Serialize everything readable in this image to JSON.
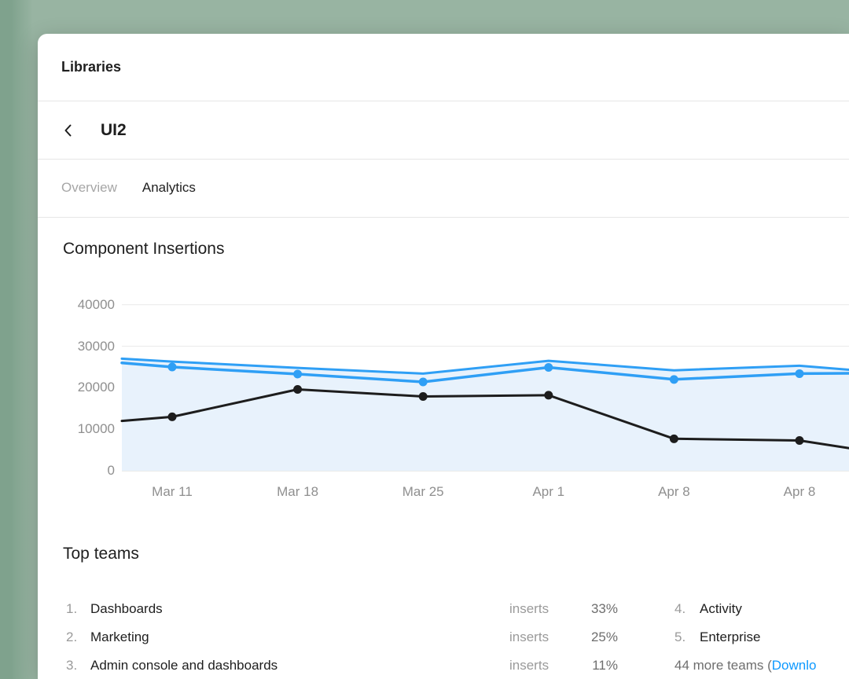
{
  "header": {
    "title": "Libraries"
  },
  "nav": {
    "title": "UI2"
  },
  "tabs": [
    {
      "label": "Overview",
      "active": false
    },
    {
      "label": "Analytics",
      "active": true
    }
  ],
  "chart_data": {
    "type": "line",
    "title": "Component Insertions",
    "categories": [
      "Mar 11",
      "Mar 18",
      "Mar 25",
      "Apr 1",
      "Apr 8",
      "Apr 8"
    ],
    "yticks": [
      0,
      10000,
      20000,
      30000,
      40000
    ],
    "ylim": [
      0,
      42000
    ],
    "grid": "horizontal",
    "legend": "none",
    "series": [
      {
        "name": "insertions-upper-band",
        "color": "#2f9ff5",
        "line_width": 3,
        "markers": false,
        "area_fill": "#e8f2fc",
        "edge_start": 27000,
        "values": [
          26300,
          24800,
          23400,
          26500,
          24200,
          25300
        ],
        "edge_end": 24200
      },
      {
        "name": "insertions-weekly",
        "color": "#2f9ff5",
        "line_width": 3.5,
        "markers": true,
        "edge_start": 26000,
        "values": [
          25000,
          23300,
          21400,
          24900,
          22000,
          23400
        ],
        "edge_end": 23500
      },
      {
        "name": "insertions-secondary",
        "color": "#1d1d1d",
        "line_width": 3,
        "markers": true,
        "edge_start": 12000,
        "values": [
          13000,
          19600,
          17900,
          18200,
          7700,
          7300
        ],
        "edge_end": 5200
      }
    ]
  },
  "top_teams": {
    "title": "Top teams",
    "left": [
      {
        "rank": "1.",
        "name": "Dashboards",
        "metric": "inserts",
        "value": "33%"
      },
      {
        "rank": "2.",
        "name": "Marketing",
        "metric": "inserts",
        "value": "25%"
      },
      {
        "rank": "3.",
        "name": "Admin console and dashboards",
        "metric": "inserts",
        "value": "11%"
      }
    ],
    "right": [
      {
        "rank": "4.",
        "name": "Activity"
      },
      {
        "rank": "5.",
        "name": "Enterprise"
      }
    ],
    "more": {
      "prefix": "44 more teams (",
      "link": "Downlo"
    }
  }
}
